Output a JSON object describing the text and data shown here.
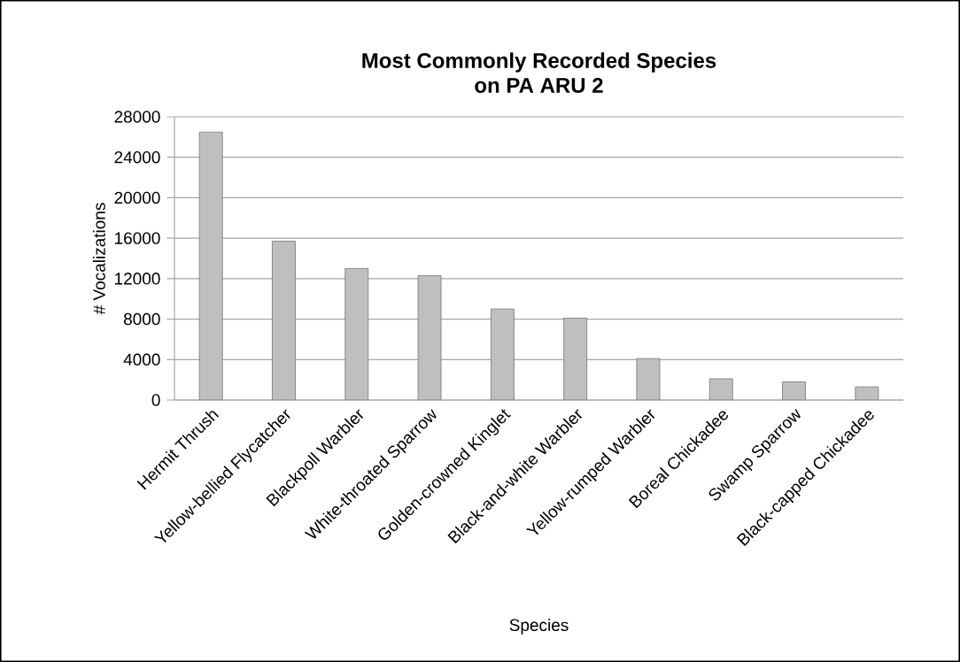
{
  "chart_data": {
    "type": "bar",
    "title": "Most Commonly Recorded Species\non PA ARU 2",
    "xlabel": "Species",
    "ylabel": "# Vocalizations",
    "categories": [
      "Hermit Thrush",
      "Yellow-bellied Flycatcher",
      "Blackpoll Warbler",
      "White-throated Sparrow",
      "Golden-crowned Kinglet",
      "Black-and-white Warbler",
      "Yellow-rumped Warbler",
      "Boreal Chickadee",
      "Swamp Sparrow",
      "Black-capped Chickadee"
    ],
    "values": [
      26500,
      15700,
      13000,
      12300,
      9000,
      8100,
      4100,
      2100,
      1800,
      1300
    ],
    "color": "#bfbfbf",
    "ylim": [
      0,
      28000
    ],
    "yticks": [
      0,
      4000,
      8000,
      12000,
      16000,
      20000,
      24000,
      28000
    ],
    "grid": "y"
  }
}
